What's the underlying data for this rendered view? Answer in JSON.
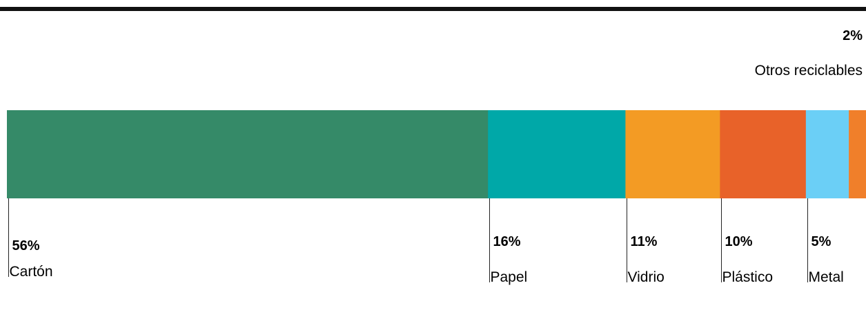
{
  "chart_data": {
    "type": "bar",
    "orientation": "horizontal-stacked",
    "unit": "%",
    "categories": [
      "Cartón",
      "Papel",
      "Vidrio",
      "Plástico",
      "Metal",
      "Otros reciclables"
    ],
    "values": [
      56,
      16,
      11,
      10,
      5,
      2
    ],
    "labels": [
      "56%",
      "16%",
      "11%",
      "10%",
      "5%",
      "2%"
    ],
    "colors": [
      "#358a68",
      "#00a8a8",
      "#f39b24",
      "#e86229",
      "#6bcff6",
      "#f07f2a"
    ],
    "top_rule_color": "#111111",
    "last_label_position": "top-right"
  }
}
